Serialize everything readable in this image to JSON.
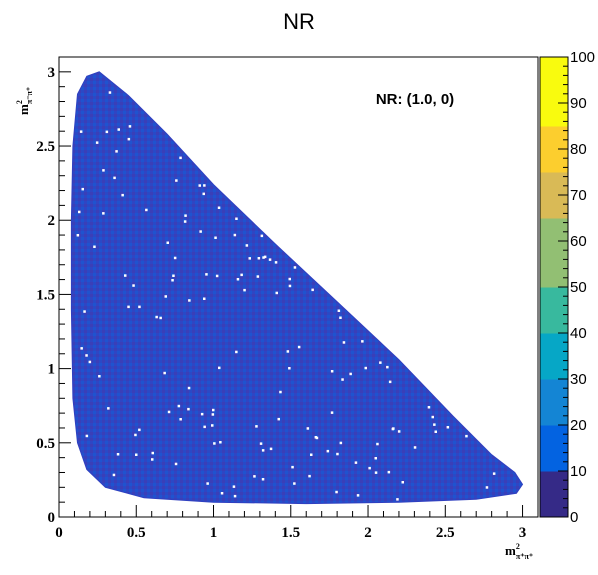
{
  "chart_data": {
    "type": "heatmap",
    "title": "NR",
    "annotation": "NR: (1.0, 0)",
    "xlabel": {
      "base": "m",
      "sup": "2",
      "sub": "π⁺π⁺"
    },
    "ylabel": {
      "base": "m",
      "sup": "2",
      "sub": "π⁻π⁺"
    },
    "xlim": [
      0,
      3.1
    ],
    "ylim": [
      0,
      3.1
    ],
    "x_ticks": [
      {
        "value": 0,
        "label": "0"
      },
      {
        "value": 0.5,
        "label": "0.5"
      },
      {
        "value": 1,
        "label": "1"
      },
      {
        "value": 1.5,
        "label": "1.5"
      },
      {
        "value": 2,
        "label": "2"
      },
      {
        "value": 2.5,
        "label": "2.5"
      },
      {
        "value": 3,
        "label": "3"
      }
    ],
    "y_ticks": [
      {
        "value": 0,
        "label": "0"
      },
      {
        "value": 0.5,
        "label": "0.5"
      },
      {
        "value": 1,
        "label": "1"
      },
      {
        "value": 1.5,
        "label": "1.5"
      },
      {
        "value": 2,
        "label": "2"
      },
      {
        "value": 2.5,
        "label": "2.5"
      },
      {
        "value": 3,
        "label": "3"
      }
    ],
    "colorbar": {
      "min": 0,
      "max": 100,
      "ticks": [
        {
          "value": 0,
          "label": "0"
        },
        {
          "value": 10,
          "label": "10"
        },
        {
          "value": 20,
          "label": "20"
        },
        {
          "value": 30,
          "label": "30"
        },
        {
          "value": 40,
          "label": "40"
        },
        {
          "value": 50,
          "label": "50"
        },
        {
          "value": 60,
          "label": "60"
        },
        {
          "value": 70,
          "label": "70"
        },
        {
          "value": 80,
          "label": "80"
        },
        {
          "value": 90,
          "label": "90"
        },
        {
          "value": 100,
          "label": "100"
        }
      ],
      "colors": [
        "#352a87",
        "#0363e1",
        "#1485d4",
        "#06a7c6",
        "#38b99e",
        "#92bf73",
        "#d9ba56",
        "#fcce2e",
        "#f9fb0e",
        "#f9fb0e"
      ]
    },
    "dalitz_boundary": {
      "x_min": 0.08,
      "x_max": 3.0,
      "y_min": 0.08,
      "y_max": 3.0,
      "outline": [
        [
          0.26,
          3.0
        ],
        [
          0.45,
          2.84
        ],
        [
          0.7,
          2.58
        ],
        [
          1.0,
          2.24
        ],
        [
          1.4,
          1.84
        ],
        [
          1.8,
          1.45
        ],
        [
          2.2,
          1.06
        ],
        [
          2.55,
          0.68
        ],
        [
          2.8,
          0.42
        ],
        [
          2.95,
          0.3
        ],
        [
          3.0,
          0.22
        ],
        [
          2.96,
          0.16
        ],
        [
          2.7,
          0.12
        ],
        [
          2.2,
          0.1
        ],
        [
          1.6,
          0.09
        ],
        [
          1.0,
          0.1
        ],
        [
          0.55,
          0.13
        ],
        [
          0.3,
          0.2
        ],
        [
          0.18,
          0.32
        ],
        [
          0.12,
          0.5
        ],
        [
          0.09,
          0.8
        ],
        [
          0.08,
          1.4
        ],
        [
          0.08,
          2.0
        ],
        [
          0.09,
          2.5
        ],
        [
          0.12,
          2.85
        ],
        [
          0.18,
          2.97
        ]
      ]
    },
    "bin_content_approx": {
      "typical_range": [
        1,
        6
      ],
      "empty_bins_scattered": true,
      "bin_width": 0.02
    }
  }
}
